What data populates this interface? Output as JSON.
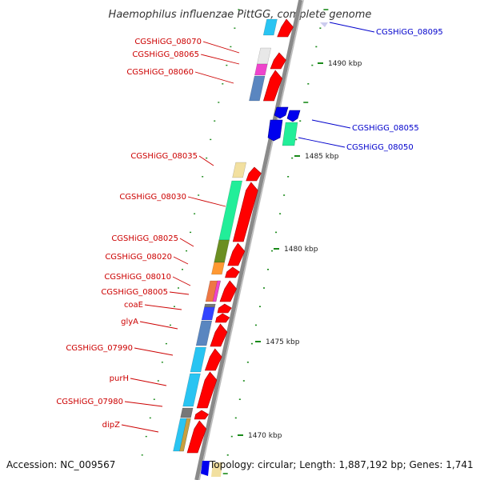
{
  "title": "Haemophilus influenzae PittGG, complete genome",
  "footer": {
    "accession": "Accession: NC_009567",
    "topology": "Topology: circular; Length: 1,887,192 bp; Genes: 1,741"
  },
  "colors": {
    "forward_label": "#cc0000",
    "reverse_label": "#0000cc",
    "forward_arrow": "#ff0000",
    "reverse_arrow": "#0000ee",
    "tick": "#1a8a1a",
    "backbone": "#8a8a8a"
  },
  "axis_ticks": [
    "1470 kbp",
    "1475 kbp",
    "1480 kbp",
    "1485 kbp",
    "1490 kbp"
  ],
  "genes_forward": [
    "CGSHiGG_08070",
    "CGSHiGG_08065",
    "CGSHiGG_08060",
    "CGSHiGG_08035",
    "CGSHiGG_08030",
    "CGSHiGG_08025",
    "CGSHiGG_08020",
    "CGSHiGG_08010",
    "CGSHiGG_08005",
    "coaE",
    "glyA",
    "CGSHiGG_07990",
    "purH",
    "CGSHiGG_07980",
    "dipZ"
  ],
  "genes_reverse": [
    "CGSHiGG_08095",
    "CGSHiGG_08055",
    "CGSHiGG_08050"
  ],
  "cog_colors": [
    "#e8e8e8",
    "#ee44cc",
    "#5a86c0",
    "#f2e0a0",
    "#22ee99",
    "#6b8f22",
    "#ff9933",
    "#3344ff",
    "#29c4f2",
    "#777777",
    "#c8a040",
    "#aa8844"
  ]
}
